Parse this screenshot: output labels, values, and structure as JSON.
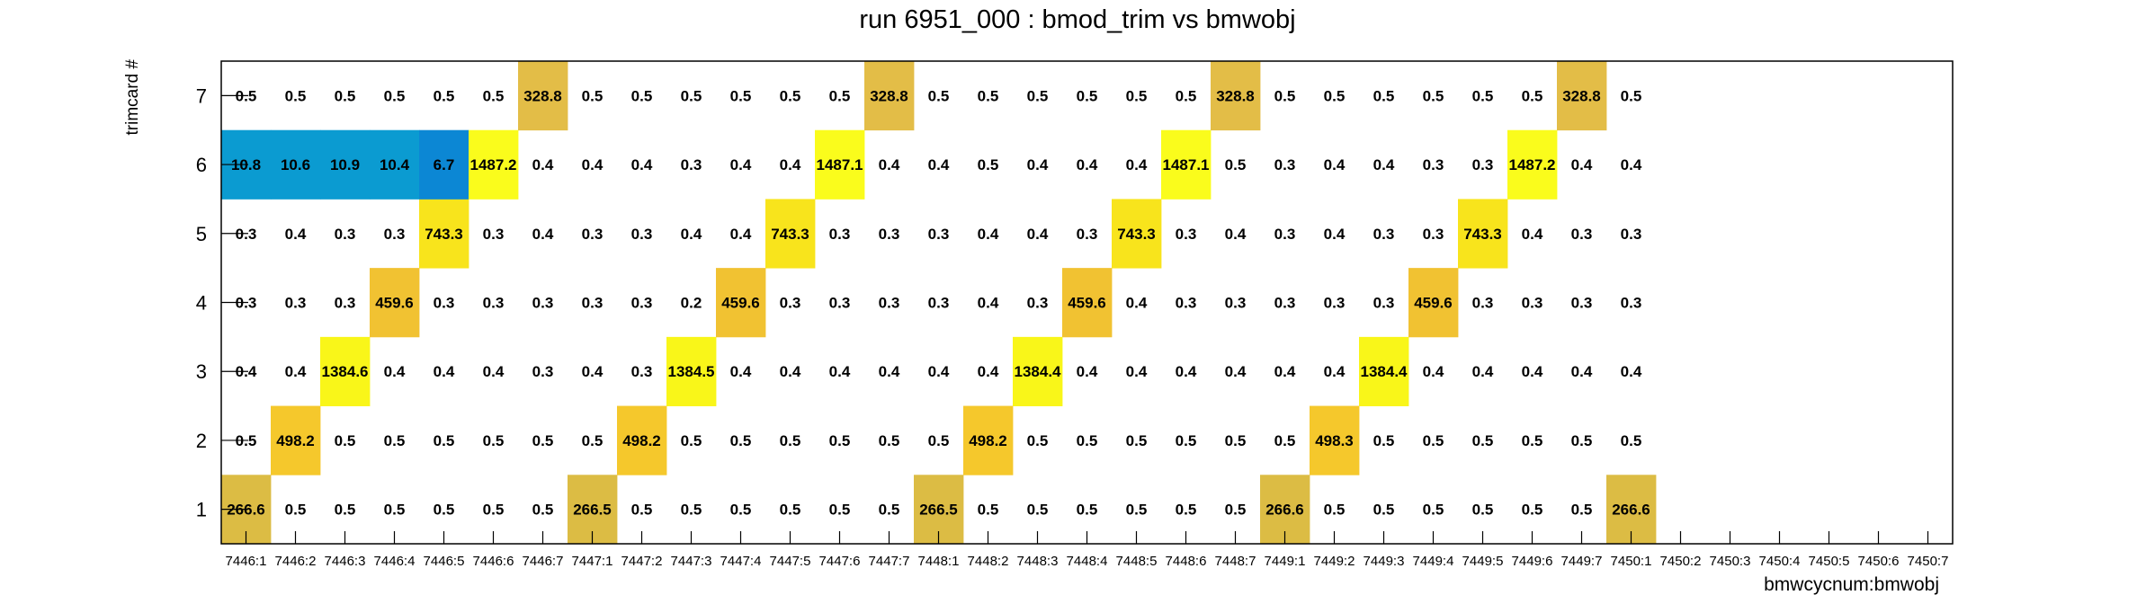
{
  "chart_data": {
    "type": "heatmap",
    "title": "run 6951_000 : bmod_trim vs bmwobj",
    "xlabel": "bmwcycnum:bmwobj",
    "ylabel": "trimcard #",
    "x_categories": [
      "7446:1",
      "7446:2",
      "7446:3",
      "7446:4",
      "7446:5",
      "7446:6",
      "7446:7",
      "7447:1",
      "7447:2",
      "7447:3",
      "7447:4",
      "7447:5",
      "7447:6",
      "7447:7",
      "7448:1",
      "7448:2",
      "7448:3",
      "7448:4",
      "7448:5",
      "7448:6",
      "7448:7",
      "7449:1",
      "7449:2",
      "7449:3",
      "7449:4",
      "7449:5",
      "7449:6",
      "7449:7",
      "7450:1",
      "7450:2",
      "7450:3",
      "7450:4",
      "7450:5",
      "7450:6",
      "7450:7"
    ],
    "y_categories": [
      "1",
      "2",
      "3",
      "4",
      "5",
      "6",
      "7"
    ],
    "values": [
      [
        266.6,
        0.5,
        0.5,
        0.5,
        0.5,
        0.5,
        0.5,
        266.5,
        0.5,
        0.5,
        0.5,
        0.5,
        0.5,
        0.5,
        266.5,
        0.5,
        0.5,
        0.5,
        0.5,
        0.5,
        0.5,
        266.6,
        0.5,
        0.5,
        0.5,
        0.5,
        0.5,
        0.5,
        266.6,
        null,
        null,
        null,
        null,
        null,
        null
      ],
      [
        0.5,
        498.2,
        0.5,
        0.5,
        0.5,
        0.5,
        0.5,
        0.5,
        498.2,
        0.5,
        0.5,
        0.5,
        0.5,
        0.5,
        0.5,
        498.2,
        0.5,
        0.5,
        0.5,
        0.5,
        0.5,
        0.5,
        498.3,
        0.5,
        0.5,
        0.5,
        0.5,
        0.5,
        0.5,
        null,
        null,
        null,
        null,
        null,
        null
      ],
      [
        0.4,
        0.4,
        1384.6,
        0.4,
        0.4,
        0.4,
        0.3,
        0.4,
        0.3,
        1384.5,
        0.4,
        0.4,
        0.4,
        0.4,
        0.4,
        0.4,
        1384.4,
        0.4,
        0.4,
        0.4,
        0.4,
        0.4,
        0.4,
        1384.4,
        0.4,
        0.4,
        0.4,
        0.4,
        0.4,
        null,
        null,
        null,
        null,
        null,
        null
      ],
      [
        0.3,
        0.3,
        0.3,
        459.6,
        0.3,
        0.3,
        0.3,
        0.3,
        0.3,
        0.2,
        459.6,
        0.3,
        0.3,
        0.3,
        0.3,
        0.4,
        0.3,
        459.6,
        0.4,
        0.3,
        0.3,
        0.3,
        0.3,
        0.3,
        459.6,
        0.3,
        0.3,
        0.3,
        0.3,
        null,
        null,
        null,
        null,
        null,
        null
      ],
      [
        0.3,
        0.4,
        0.3,
        0.3,
        743.3,
        0.3,
        0.4,
        0.3,
        0.3,
        0.4,
        0.4,
        743.3,
        0.3,
        0.3,
        0.3,
        0.4,
        0.4,
        0.3,
        743.3,
        0.3,
        0.4,
        0.3,
        0.4,
        0.3,
        0.3,
        743.3,
        0.4,
        0.3,
        0.3,
        null,
        null,
        null,
        null,
        null,
        null
      ],
      [
        10.8,
        10.6,
        10.9,
        10.4,
        6.7,
        1487.2,
        0.4,
        0.4,
        0.4,
        0.3,
        0.4,
        0.4,
        1487.1,
        0.4,
        0.4,
        0.5,
        0.4,
        0.4,
        0.4,
        1487.1,
        0.5,
        0.3,
        0.4,
        0.4,
        0.3,
        0.3,
        1487.2,
        0.4,
        0.4,
        null,
        null,
        null,
        null,
        null,
        null
      ],
      [
        0.5,
        0.5,
        0.5,
        0.5,
        0.5,
        0.5,
        328.8,
        0.5,
        0.5,
        0.5,
        0.5,
        0.5,
        0.5,
        328.8,
        0.5,
        0.5,
        0.5,
        0.5,
        0.5,
        0.5,
        328.8,
        0.5,
        0.5,
        0.5,
        0.5,
        0.5,
        0.5,
        328.8,
        0.5,
        null,
        null,
        null,
        null,
        null,
        null
      ]
    ],
    "colors": {
      "low": "#0b9bd1",
      "mid_low": "#0c87d4",
      "c266": "#dcbc44",
      "c328": "#e3bd47",
      "c459": "#f1c232",
      "c498": "#f5c82c",
      "c743": "#f8e41c",
      "c1384": "#f9f619",
      "c1487": "#fafc1c"
    },
    "grid": false,
    "legend": "none"
  }
}
